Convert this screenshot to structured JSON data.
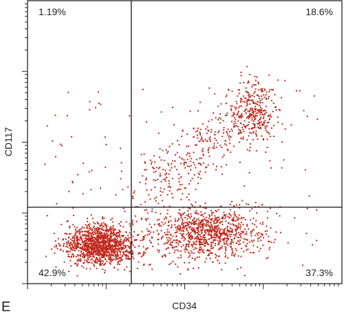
{
  "panel_label": "E",
  "chart_data": {
    "type": "scatter",
    "xlabel": "CD34",
    "ylabel": "CD117",
    "x_scale": "log",
    "y_scale": "log",
    "grid": false,
    "point_color": "#c0281c",
    "quadrant_lines": {
      "x": 0.33,
      "y": 0.73
    },
    "quadrants": [
      {
        "position": "top-left",
        "label": "1.19%"
      },
      {
        "position": "top-right",
        "label": "18.6%"
      },
      {
        "position": "bottom-left",
        "label": "42.9%"
      },
      {
        "position": "bottom-right",
        "label": "37.3%"
      }
    ],
    "clusters": [
      {
        "name": "double-negative",
        "cx": 0.23,
        "cy": 0.86,
        "sx": 0.055,
        "sy": 0.035,
        "n": 1300
      },
      {
        "name": "cd34-single",
        "cx": 0.57,
        "cy": 0.82,
        "sx": 0.085,
        "sy": 0.045,
        "n": 950
      },
      {
        "name": "double-positive",
        "cx": 0.72,
        "cy": 0.38,
        "sx": 0.035,
        "sy": 0.055,
        "n": 260
      },
      {
        "name": "diagonal-spread",
        "trail": true,
        "x0": 0.38,
        "y0": 0.7,
        "x1": 0.72,
        "y1": 0.36,
        "spread": 0.06,
        "n": 380
      },
      {
        "name": "sparse-background",
        "uniform": true,
        "xmin": 0.05,
        "xmax": 0.95,
        "ymin": 0.3,
        "ymax": 0.96,
        "n": 120
      }
    ]
  }
}
